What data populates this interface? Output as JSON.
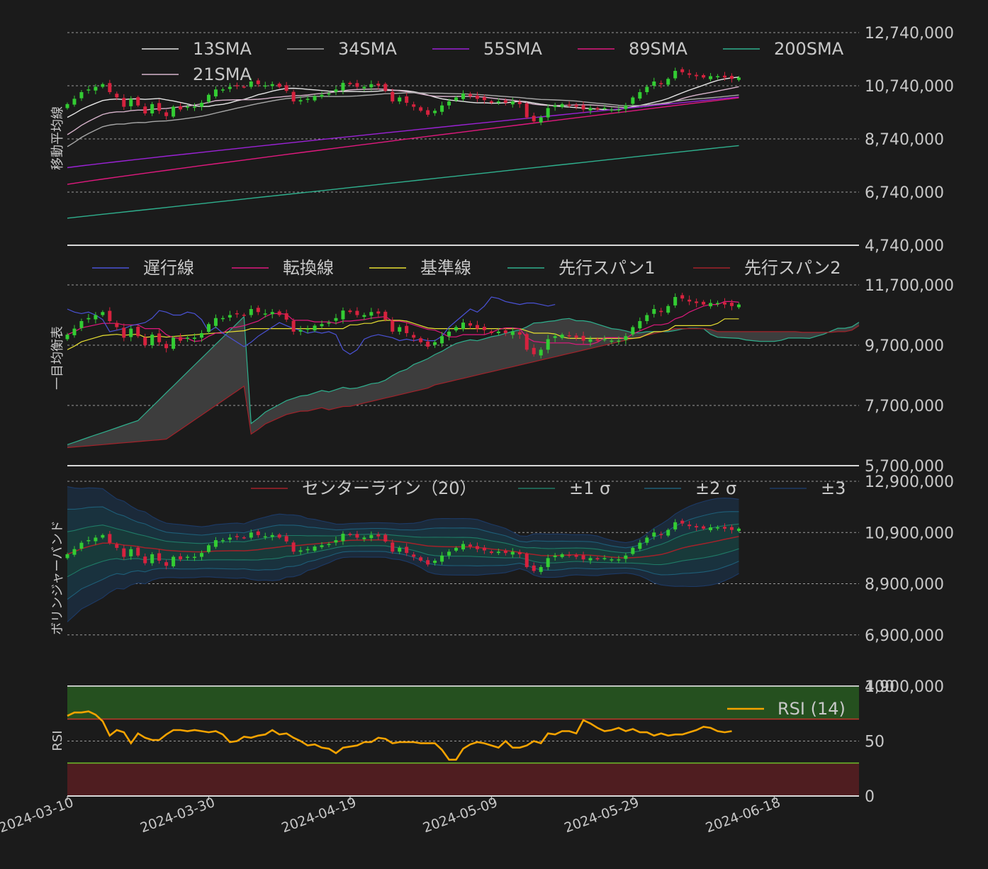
{
  "chart_data": [
    {
      "type": "line",
      "panel": "sma",
      "ylabel": "移動平均線",
      "yticks": [
        "12,740,000",
        "10,740,000",
        "8,740,000",
        "6,740,000",
        "4,740,000"
      ],
      "ylim": [
        4740000,
        12740000
      ],
      "grid": true,
      "legend_position": "top",
      "series": [
        {
          "name": "13SMA",
          "color": "#e6e6e6",
          "start": 9550000,
          "end": 10840000
        },
        {
          "name": "21SMA",
          "color": "#d8b4cc",
          "start": 8900000,
          "end": 10860000
        },
        {
          "name": "34SMA",
          "color": "#a8a8a8",
          "start": 8450000,
          "end": 10570000
        },
        {
          "name": "55SMA",
          "color": "#9b22d6",
          "start": 7660000,
          "end": 10320000
        },
        {
          "name": "89SMA",
          "color": "#e0197e",
          "start": 7030000,
          "end": 10290000
        },
        {
          "name": "200SMA",
          "color": "#2fb08e",
          "start": 5760000,
          "end": 8490000
        }
      ]
    },
    {
      "type": "line",
      "panel": "ichimoku",
      "ylabel": "一目均衡表",
      "yticks": [
        "11,700,000",
        "9,700,000",
        "7,700,000",
        "5,700,000"
      ],
      "ylim": [
        5700000,
        11700000
      ],
      "grid": true,
      "legend_position": "top",
      "series": [
        {
          "name": "遅行線",
          "color": "#4a52d6"
        },
        {
          "name": "転換線",
          "color": "#e0197e"
        },
        {
          "name": "基準線",
          "color": "#e8e032"
        },
        {
          "name": "先行スパン1",
          "color": "#2fb08e"
        },
        {
          "name": "先行スパン2",
          "color": "#a3222a"
        }
      ]
    },
    {
      "type": "line",
      "panel": "bollinger",
      "ylabel": "ボリンジャーバンド",
      "yticks": [
        "12,900,000",
        "10,900,000",
        "8,900,000",
        "6,900,000",
        "4,900,000"
      ],
      "ylim": [
        4900000,
        12900000
      ],
      "grid": true,
      "legend_position": "top",
      "series": [
        {
          "name": "センターライン（20）",
          "color": "#a3222a"
        },
        {
          "name": "±1 σ",
          "color": "#1f7a66"
        },
        {
          "name": "±2 σ",
          "color": "#1e5e78"
        },
        {
          "name": "±3",
          "color": "#1d3a66"
        }
      ]
    },
    {
      "type": "line",
      "panel": "rsi",
      "ylabel": "RSI",
      "yticks": [
        "100",
        "50",
        "0"
      ],
      "ylim": [
        0,
        100
      ],
      "overbought": 70,
      "oversold": 30,
      "grid": true,
      "legend_position": "right",
      "series": [
        {
          "name": "RSI (14)",
          "color": "#f5a300",
          "values": [
            73,
            76,
            76,
            77,
            74,
            68,
            55,
            60,
            58,
            48,
            57,
            53,
            51,
            51,
            56,
            60,
            60,
            59,
            60,
            59,
            58,
            59,
            56,
            49,
            50,
            54,
            53,
            55,
            56,
            60,
            56,
            57,
            53,
            50,
            46,
            47,
            44,
            43,
            39,
            44,
            45,
            46,
            49,
            49,
            53,
            52,
            48,
            49,
            49,
            49,
            48,
            48,
            48,
            42,
            33,
            33,
            43,
            47,
            49,
            48,
            46,
            44,
            50,
            44,
            44,
            46,
            50,
            48,
            57,
            56,
            59,
            59,
            57,
            69,
            66,
            62,
            59,
            60,
            62,
            59,
            61,
            58,
            58,
            55,
            57,
            55,
            56,
            56,
            58,
            60,
            63,
            62,
            59,
            58,
            59
          ]
        }
      ]
    }
  ],
  "x_axis": {
    "ticks": [
      "2024-03-10",
      "2024-03-30",
      "2024-04-19",
      "2024-05-09",
      "2024-05-29",
      "2024-06-18"
    ],
    "first_date": "2024-03-10",
    "last_date": "2024-06-30"
  },
  "candles": {
    "up_color": "#33cc33",
    "down_color": "#d6223e",
    "closes": [
      10050,
      10250,
      10500,
      10600,
      10700,
      10800,
      10500,
      10300,
      9950,
      10250,
      10000,
      9700,
      10050,
      9800,
      9600,
      9950,
      9850,
      9950,
      9950,
      10100,
      10400,
      10600,
      10600,
      10700,
      10750,
      10700,
      10900,
      10800,
      10750,
      10800,
      10700,
      10550,
      10150,
      10200,
      10250,
      10350,
      10400,
      10450,
      10600,
      10850,
      10800,
      10700,
      10700,
      10800,
      10750,
      10550,
      10150,
      10300,
      10100,
      9950,
      9800,
      9650,
      9800,
      10000,
      10150,
      10300,
      10450,
      10350,
      10250,
      10200,
      10100,
      10150,
      10100,
      10150,
      10050,
      9550,
      9400,
      9550,
      9900,
      10000,
      10050,
      10000,
      9950,
      9850,
      9900,
      9850,
      9900,
      9850,
      9850,
      10000,
      10300,
      10500,
      10700,
      10900,
      10800,
      11000,
      11300,
      11250,
      11150,
      11100,
      11050,
      11100,
      11100,
      11050,
      11000,
      11050
    ]
  },
  "colors": {
    "background": "#1b1b1b",
    "text": "#c8c8c8",
    "overbought_fill": "#25501f",
    "oversold_fill": "#4f1d20",
    "cloud_fill": "#3d3d3d"
  }
}
